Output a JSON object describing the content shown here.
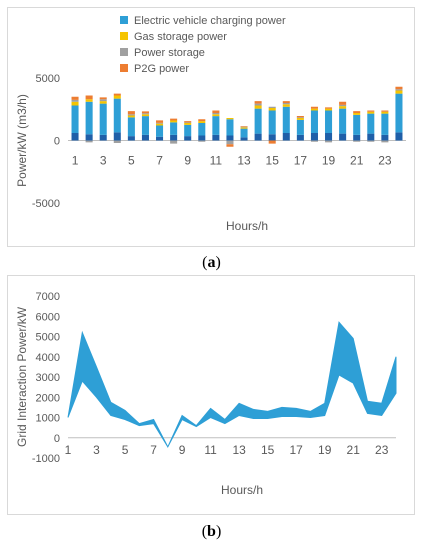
{
  "chart_data": [
    {
      "type": "bar",
      "stacked": true,
      "ylabel": "Power/kW (m3/h)",
      "xlabel": "Hours/h",
      "ylim": [
        -5000,
        5000
      ],
      "yticks": [
        5000,
        0,
        -5000
      ],
      "categories": [
        1,
        2,
        3,
        4,
        5,
        6,
        7,
        8,
        9,
        10,
        11,
        12,
        13,
        14,
        15,
        16,
        17,
        18,
        19,
        20,
        21,
        22,
        23,
        24
      ],
      "xtick_labels": [
        "1",
        "3",
        "5",
        "7",
        "9",
        "11",
        "13",
        "15",
        "17",
        "19",
        "21",
        "23"
      ],
      "legend_position": "top",
      "series": [
        {
          "name": "Electric vehicle charging power",
          "color": "#2e9fd6",
          "values": [
            2200,
            2600,
            2500,
            2700,
            1500,
            1500,
            900,
            1000,
            900,
            1000,
            1500,
            1300,
            700,
            2000,
            1900,
            2100,
            1200,
            1800,
            1800,
            2000,
            1600,
            1600,
            1700,
            3100
          ]
        },
        {
          "name": "Gas storage power",
          "color": "#f5c400",
          "values": [
            300,
            200,
            200,
            250,
            150,
            150,
            150,
            150,
            150,
            150,
            150,
            100,
            100,
            250,
            200,
            200,
            150,
            150,
            150,
            200,
            150,
            150,
            150,
            250
          ]
        },
        {
          "name": "Power storage",
          "color": "#a0a0a0",
          "values": [
            150,
            -150,
            150,
            -200,
            100,
            80,
            60,
            -250,
            50,
            -100,
            100,
            -300,
            50,
            150,
            100,
            100,
            60,
            -100,
            -150,
            100,
            -100,
            -100,
            -150,
            100
          ]
        },
        {
          "name": "P2G power",
          "color": "#ed7d31",
          "values": [
            250,
            300,
            150,
            150,
            250,
            150,
            200,
            150,
            100,
            150,
            200,
            -200,
            50,
            200,
            -250,
            150,
            100,
            150,
            100,
            250,
            150,
            100,
            100,
            200
          ]
        }
      ],
      "base_series": {
        "color": "#1f5fa8",
        "values": [
          600,
          500,
          450,
          650,
          350,
          450,
          300,
          450,
          350,
          400,
          450,
          400,
          250,
          550,
          500,
          600,
          450,
          600,
          600,
          550,
          450,
          550,
          450,
          650
        ]
      }
    },
    {
      "type": "area",
      "ylabel": "Grid Interaction Power/kW",
      "xlabel": "Hours/h",
      "ylim": [
        -1000,
        7000
      ],
      "yticks": [
        7000,
        6000,
        5000,
        4000,
        3000,
        2000,
        1000,
        0,
        -1000
      ],
      "x": [
        1,
        2,
        3,
        4,
        5,
        6,
        7,
        8,
        9,
        10,
        11,
        12,
        13,
        14,
        15,
        16,
        17,
        18,
        19,
        20,
        21,
        22,
        23,
        24
      ],
      "xtick_labels": [
        "1",
        "3",
        "5",
        "7",
        "9",
        "11",
        "13",
        "15",
        "17",
        "19",
        "21",
        "23"
      ],
      "color": "#2e9fd6",
      "upper": [
        1000,
        5200,
        3500,
        1750,
        1350,
        700,
        900,
        -450,
        1100,
        600,
        1450,
        900,
        1700,
        1400,
        1300,
        1500,
        1450,
        1300,
        1700,
        5700,
        4900,
        1800,
        1700,
        4000
      ],
      "lower": [
        1000,
        2800,
        2000,
        1100,
        900,
        600,
        700,
        -450,
        900,
        550,
        1000,
        700,
        1100,
        950,
        950,
        1050,
        1050,
        1000,
        1100,
        3100,
        2700,
        1200,
        1100,
        2200
      ]
    }
  ],
  "captions": {
    "a_open": "(",
    "a_letter": "a",
    "a_close": ")",
    "b_open": "(",
    "b_letter": "b",
    "b_close": ")"
  }
}
